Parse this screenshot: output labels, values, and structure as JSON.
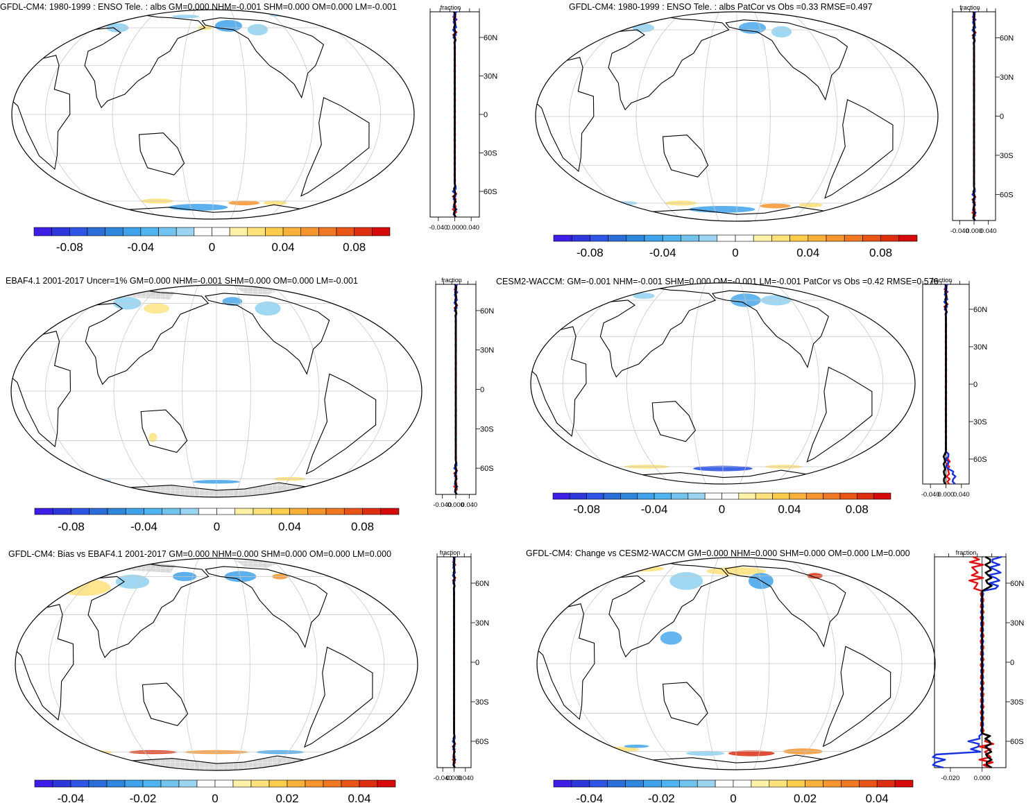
{
  "colorbar_colors": [
    "#3c1ee6",
    "#2d37dc",
    "#2e55e6",
    "#2b6ed9",
    "#2f86dd",
    "#3fa2ea",
    "#4fb4f0",
    "#72c4ee",
    "#9ad4f0",
    "#ffffff",
    "#ffffff",
    "#fff1a8",
    "#ffe27a",
    "#fccc4b",
    "#f9b13a",
    "#f6952d",
    "#f07822",
    "#e85517",
    "#dd2f10",
    "#d60a0a"
  ],
  "fill_colors": {
    "deep_blue": "#2e55e6",
    "blue": "#3fa2ea",
    "light_blue": "#8fd0f0",
    "yellow": "#ffe27a",
    "orange": "#f6952d",
    "red": "#dd2f10",
    "land_mask": "#d9d9d9"
  },
  "lat_labels": [
    "60N",
    "30N",
    "0",
    "30S",
    "60S"
  ],
  "panels": [
    {
      "id": "p1",
      "title": "GFDL-CM4: 1980-1999 : ENSO Tele. : albs GM=0.000 NHM=-0.001 SHM=0.000 OM=0.000 LM=-0.001",
      "masked": false,
      "colorbar_ticks": [
        "-0.08",
        "-0.04",
        "0",
        "0.04",
        "0.08"
      ],
      "profile": {
        "label": "fraction",
        "x_ticks": [
          "-0.040",
          "0.000",
          "0.040"
        ],
        "xlim": [
          -0.06,
          0.06
        ]
      }
    },
    {
      "id": "p2",
      "title": "GFDL-CM4: 1980-1999 : ENSO Tele. : albs PatCor vs Obs =0.33 RMSE=0.497",
      "masked": false,
      "colorbar_ticks": [
        "-0.08",
        "-0.04",
        "0",
        "0.04",
        "0.08"
      ],
      "profile": {
        "label": "fraction",
        "x_ticks": [
          "-0.040",
          "0.000",
          "0.040"
        ],
        "xlim": [
          -0.06,
          0.06
        ]
      }
    },
    {
      "id": "p3",
      "title": "EBAF4.1 2001-2017 Uncer=1% GM=0.000 NHM=-0.001 SHM=0.000 OM=0.000 LM=-0.001",
      "masked": true,
      "colorbar_ticks": [
        "-0.08",
        "-0.04",
        "0",
        "0.04",
        "0.08"
      ],
      "profile": {
        "label": "fraction",
        "x_ticks": [
          "-0.040",
          "0.000",
          "0.040"
        ],
        "xlim": [
          -0.06,
          0.06
        ]
      }
    },
    {
      "id": "p4",
      "title": "CESM2-WACCM: GM=-0.001 NHM=-0.001 SHM=0.000 OM=-0.001 LM=-0.001 PatCor vs Obs =0.42 RMSE=0.576",
      "masked": false,
      "colorbar_ticks": [
        "-0.08",
        "-0.04",
        "0",
        "0.04",
        "0.08"
      ],
      "profile": {
        "label": "fraction",
        "x_ticks": [
          "-0.040",
          "0.000",
          "0.040"
        ],
        "xlim": [
          -0.06,
          0.06
        ]
      }
    },
    {
      "id": "p5",
      "title": "GFDL-CM4: Bias vs EBAF4.1 2001-2017 GM=0.000 NHM=0.000 SHM=0.000 OM=0.000 LM=0.000",
      "masked": true,
      "colorbar_ticks": [
        "-0.04",
        "-0.02",
        "0",
        "0.02",
        "0.04"
      ],
      "profile": {
        "label": "fraction",
        "x_ticks": [
          "-0.040",
          "0.000",
          "0.040"
        ],
        "xlim": [
          -0.06,
          0.06
        ]
      }
    },
    {
      "id": "p6",
      "title": "GFDL-CM4: Change vs CESM2-WACCM GM=0.000 NHM=0.000 SHM=0.000 OM=0.000 LM=0.000",
      "masked": false,
      "colorbar_ticks": [
        "-0.04",
        "-0.02",
        "0",
        "0.02",
        "0.04"
      ],
      "profile": {
        "label": "fraction",
        "x_ticks": [
          "-0.020",
          "0.000"
        ],
        "xlim": [
          -0.03,
          0.015
        ]
      }
    }
  ]
}
